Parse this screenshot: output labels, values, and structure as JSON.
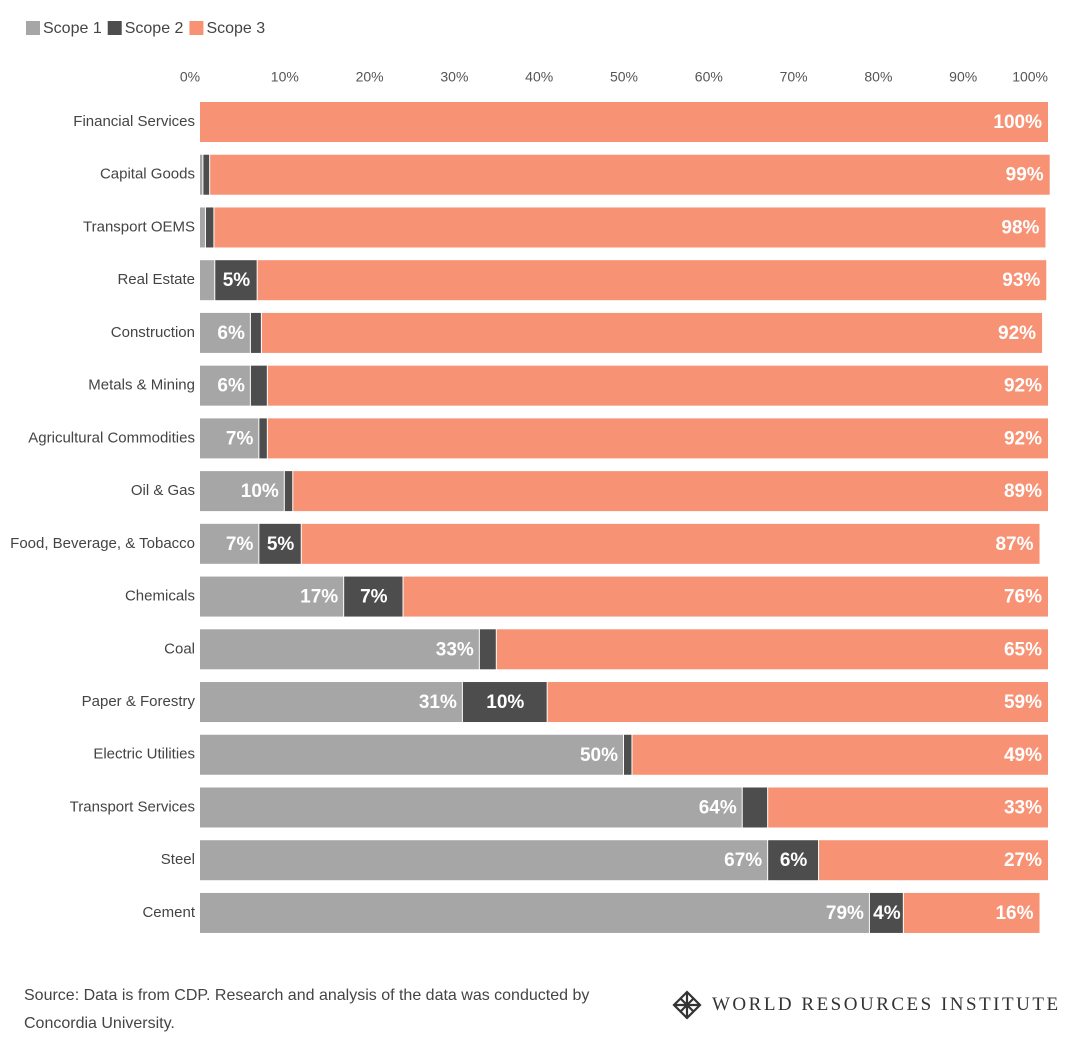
{
  "chart_data": {
    "type": "stacked-bar-horizontal",
    "categories": [
      "Financial Services",
      "Capital Goods",
      "Transport OEMS",
      "Real Estate",
      "Construction",
      "Metals & Mining",
      "Agricultural Commodities",
      "Oil & Gas",
      "Food, Beverage, & Tobacco",
      "Chemicals",
      "Coal",
      "Paper & Forestry",
      "Electric Utilities",
      "Transport Services",
      "Steel",
      "Cement"
    ],
    "series": [
      {
        "name": "Scope 1",
        "color": "#a6a6a6",
        "values": [
          0,
          0.4,
          0.7,
          1.8,
          6,
          6,
          7,
          10,
          7,
          17,
          33,
          31,
          50,
          64,
          67,
          79
        ],
        "value_labels": [
          null,
          null,
          null,
          null,
          "6%",
          "6%",
          "7%",
          "10%",
          "7%",
          "17%",
          "33%",
          "31%",
          "50%",
          "64%",
          "67%",
          "79%"
        ]
      },
      {
        "name": "Scope 2",
        "color": "#4d4d4d",
        "values": [
          0,
          0.8,
          1,
          5,
          1.3,
          2,
          1,
          1,
          5,
          7,
          2,
          10,
          1,
          3,
          6,
          4
        ],
        "value_labels": [
          null,
          null,
          null,
          "5%",
          null,
          null,
          null,
          null,
          "5%",
          "7%",
          null,
          "10%",
          null,
          null,
          "6%",
          "4%"
        ]
      },
      {
        "name": "Scope 3",
        "color": "#f79274",
        "values": [
          100,
          99,
          98,
          93,
          92,
          92,
          92,
          89,
          87,
          76,
          65,
          59,
          49,
          33,
          27,
          16
        ],
        "value_labels": [
          "100%",
          "99%",
          "98%",
          "93%",
          "92%",
          "92%",
          "92%",
          "89%",
          "87%",
          "76%",
          "65%",
          "59%",
          "49%",
          "33%",
          "27%",
          "16%"
        ]
      }
    ],
    "xlim": [
      0,
      100
    ],
    "xticks": [
      {
        "value": 0,
        "label": "0%"
      },
      {
        "value": 10,
        "label": "10%"
      },
      {
        "value": 20,
        "label": "20%"
      },
      {
        "value": 30,
        "label": "30%"
      },
      {
        "value": 40,
        "label": "40%"
      },
      {
        "value": 50,
        "label": "50%"
      },
      {
        "value": 60,
        "label": "60%"
      },
      {
        "value": 70,
        "label": "70%"
      },
      {
        "value": 80,
        "label": "80%"
      },
      {
        "value": 90,
        "label": "90%"
      },
      {
        "value": 100,
        "label": "100%"
      }
    ],
    "legend": "top-left",
    "source": "Source: Data is from CDP. Research and analysis of the data was conducted by Concordia University.",
    "logo": "WORLD RESOURCES INSTITUTE"
  }
}
